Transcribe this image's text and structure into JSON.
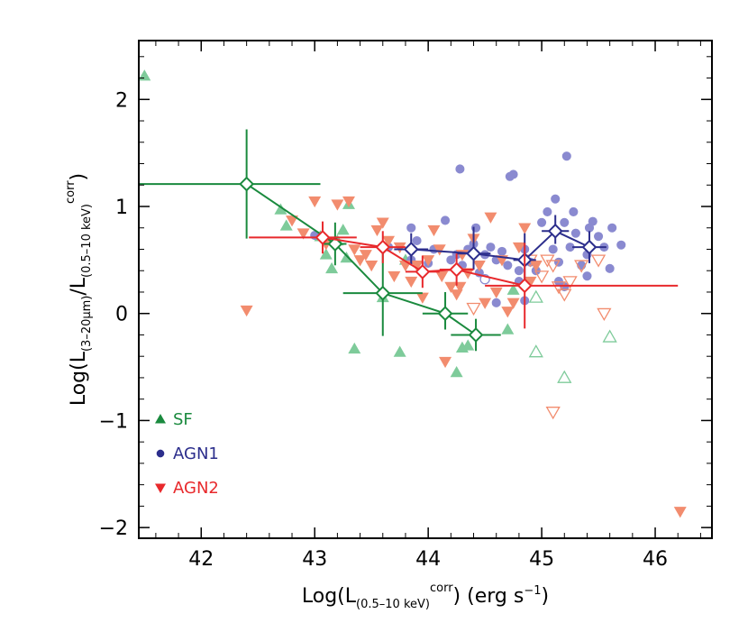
{
  "chart_data": {
    "type": "scatter",
    "xlabel": {
      "prefix": "Log(L",
      "sub": "(0.5–10 keV)",
      "sup": "corr",
      "suffix": ") (erg s",
      "unit_sup": "−1",
      "end": ")"
    },
    "ylabel": {
      "prefix": "Log(L",
      "sub1": "(3–20μm)",
      "mid": "/L",
      "sub2": "(0.5–10 keV)",
      "sup": "corr",
      "end": ")"
    },
    "xlim": [
      41.45,
      46.5
    ],
    "ylim": [
      -2.1,
      2.55
    ],
    "x_ticks": [
      42,
      43,
      44,
      45,
      46
    ],
    "x_tick_labels": [
      "42",
      "43",
      "44",
      "45",
      "46"
    ],
    "y_ticks": [
      2,
      1,
      0,
      -1,
      -2
    ],
    "y_tick_labels": [
      "2",
      "1",
      "0",
      "−1",
      "−2"
    ],
    "legend": [
      {
        "label": "SF",
        "color": "#1a8a3e",
        "marker": "triangle-up"
      },
      {
        "label": "AGN1",
        "color": "#2c2e8c",
        "marker": "circle"
      },
      {
        "label": "AGN2",
        "color": "#e8292c",
        "marker": "triangle-down"
      }
    ],
    "colors": {
      "sf_point": "#7ecb9a",
      "agn1_point": "#8a8ad0",
      "agn2_point": "#f28c6e",
      "sf_line": "#1a8a3e",
      "agn1_line": "#2c2e8c",
      "agn2_line": "#e8292c"
    },
    "series": [
      {
        "name": "SF",
        "kind": "points",
        "marker": "triangle-up",
        "filled": [
          [
            41.5,
            2.22
          ],
          [
            42.7,
            0.97
          ],
          [
            42.75,
            0.82
          ],
          [
            43.05,
            0.72
          ],
          [
            43.1,
            0.55
          ],
          [
            43.15,
            0.42
          ],
          [
            43.2,
            0.68
          ],
          [
            43.25,
            0.78
          ],
          [
            43.28,
            0.52
          ],
          [
            43.3,
            1.02
          ],
          [
            43.35,
            -0.33
          ],
          [
            43.6,
            0.15
          ],
          [
            43.75,
            -0.36
          ],
          [
            43.8,
            0.5
          ],
          [
            44.25,
            -0.55
          ],
          [
            44.3,
            -0.32
          ],
          [
            44.35,
            -0.3
          ],
          [
            44.7,
            -0.15
          ],
          [
            44.75,
            0.22
          ]
        ],
        "open": [
          [
            44.95,
            -0.36
          ],
          [
            44.95,
            0.15
          ],
          [
            45.2,
            -0.6
          ],
          [
            45.6,
            -0.22
          ]
        ]
      },
      {
        "name": "AGN1",
        "kind": "points",
        "marker": "circle",
        "filled": [
          [
            43.0,
            0.73
          ],
          [
            43.65,
            0.62
          ],
          [
            43.85,
            0.8
          ],
          [
            43.85,
            0.5
          ],
          [
            43.9,
            0.68
          ],
          [
            44.0,
            0.47
          ],
          [
            44.05,
            0.6
          ],
          [
            44.15,
            0.87
          ],
          [
            44.2,
            0.5
          ],
          [
            44.25,
            0.55
          ],
          [
            44.28,
            1.35
          ],
          [
            44.3,
            0.45
          ],
          [
            44.35,
            0.6
          ],
          [
            44.4,
            0.65
          ],
          [
            44.42,
            0.8
          ],
          [
            44.45,
            0.38
          ],
          [
            44.5,
            0.55
          ],
          [
            44.55,
            0.62
          ],
          [
            44.6,
            0.5
          ],
          [
            44.65,
            0.58
          ],
          [
            44.7,
            0.45
          ],
          [
            44.72,
            1.28
          ],
          [
            44.75,
            1.3
          ],
          [
            44.8,
            0.4
          ],
          [
            44.85,
            0.6
          ],
          [
            44.9,
            0.48
          ],
          [
            45.0,
            0.85
          ],
          [
            45.05,
            0.95
          ],
          [
            45.1,
            0.6
          ],
          [
            45.12,
            1.07
          ],
          [
            45.15,
            0.48
          ],
          [
            45.2,
            0.85
          ],
          [
            45.22,
            1.47
          ],
          [
            45.25,
            0.62
          ],
          [
            45.28,
            0.95
          ],
          [
            45.3,
            0.75
          ],
          [
            45.35,
            0.45
          ],
          [
            45.4,
            0.35
          ],
          [
            45.42,
            0.8
          ],
          [
            45.45,
            0.86
          ],
          [
            45.5,
            0.72
          ],
          [
            45.55,
            0.62
          ],
          [
            45.6,
            0.42
          ],
          [
            45.62,
            0.8
          ],
          [
            45.7,
            0.64
          ],
          [
            44.6,
            0.1
          ],
          [
            44.85,
            0.12
          ],
          [
            44.8,
            0.3
          ],
          [
            44.95,
            0.4
          ],
          [
            45.15,
            0.3
          ],
          [
            45.2,
            0.25
          ],
          [
            45.4,
            0.55
          ]
        ],
        "open": [
          [
            44.5,
            0.32
          ]
        ]
      },
      {
        "name": "AGN2",
        "kind": "points",
        "marker": "triangle-down",
        "filled": [
          [
            42.4,
            0.03
          ],
          [
            42.8,
            0.87
          ],
          [
            42.9,
            0.75
          ],
          [
            43.0,
            1.05
          ],
          [
            43.1,
            0.65
          ],
          [
            43.2,
            1.02
          ],
          [
            43.3,
            1.05
          ],
          [
            43.35,
            0.6
          ],
          [
            43.4,
            0.5
          ],
          [
            43.45,
            0.55
          ],
          [
            43.5,
            0.45
          ],
          [
            43.55,
            0.78
          ],
          [
            43.6,
            0.85
          ],
          [
            43.65,
            0.68
          ],
          [
            43.7,
            0.35
          ],
          [
            43.75,
            0.62
          ],
          [
            43.8,
            0.45
          ],
          [
            43.85,
            0.3
          ],
          [
            43.9,
            0.45
          ],
          [
            43.95,
            0.15
          ],
          [
            44.0,
            0.5
          ],
          [
            44.05,
            0.78
          ],
          [
            44.1,
            0.6
          ],
          [
            44.12,
            0.35
          ],
          [
            44.15,
            -0.45
          ],
          [
            44.2,
            0.25
          ],
          [
            44.25,
            0.18
          ],
          [
            44.28,
            0.25
          ],
          [
            44.3,
            0.55
          ],
          [
            44.35,
            0.38
          ],
          [
            44.4,
            0.7
          ],
          [
            44.45,
            0.45
          ],
          [
            44.5,
            0.1
          ],
          [
            44.55,
            0.9
          ],
          [
            44.6,
            0.2
          ],
          [
            44.65,
            0.5
          ],
          [
            44.7,
            0.02
          ],
          [
            44.75,
            0.1
          ],
          [
            44.8,
            0.62
          ],
          [
            44.85,
            0.8
          ],
          [
            44.9,
            0.3
          ],
          [
            44.95,
            0.45
          ],
          [
            46.22,
            -1.85
          ]
        ],
        "open": [
          [
            44.4,
            0.05
          ],
          [
            44.9,
            0.5
          ],
          [
            45.0,
            0.35
          ],
          [
            45.05,
            0.5
          ],
          [
            45.1,
            0.45
          ],
          [
            45.15,
            0.25
          ],
          [
            45.2,
            0.18
          ],
          [
            45.25,
            0.3
          ],
          [
            45.35,
            0.45
          ],
          [
            45.5,
            0.5
          ],
          [
            45.1,
            -0.92
          ],
          [
            45.55,
            0.0
          ]
        ]
      },
      {
        "name": "SF",
        "kind": "binned",
        "points": [
          {
            "x": 42.4,
            "y": 1.21,
            "xerr": [
              0.95,
              0.65
            ],
            "yerr": [
              0.51,
              0.51
            ]
          },
          {
            "x": 43.18,
            "y": 0.65,
            "xerr": [
              0.1,
              0.1
            ],
            "yerr": [
              0.2,
              0.2
            ]
          },
          {
            "x": 43.6,
            "y": 0.19,
            "xerr": [
              0.35,
              0.35
            ],
            "yerr": [
              0.4,
              0.45
            ]
          },
          {
            "x": 44.15,
            "y": 0.0,
            "xerr": [
              0.2,
              0.2
            ],
            "yerr": [
              0.15,
              0.2
            ]
          },
          {
            "x": 44.42,
            "y": -0.2,
            "xerr": [
              0.22,
              0.22
            ],
            "yerr": [
              0.15,
              0.15
            ]
          }
        ]
      },
      {
        "name": "AGN1",
        "kind": "binned",
        "points": [
          {
            "x": 43.85,
            "y": 0.6,
            "xerr": [
              0.15,
              0.15
            ],
            "yerr": [
              0.15,
              0.15
            ]
          },
          {
            "x": 44.4,
            "y": 0.56,
            "xerr": [
              0.15,
              0.15
            ],
            "yerr": [
              0.15,
              0.25
            ]
          },
          {
            "x": 44.85,
            "y": 0.5,
            "xerr": [
              0.1,
              0.1
            ],
            "yerr": [
              0.2,
              0.25
            ]
          },
          {
            "x": 45.12,
            "y": 0.77,
            "xerr": [
              0.12,
              0.12
            ],
            "yerr": [
              0.12,
              0.15
            ]
          },
          {
            "x": 45.42,
            "y": 0.62,
            "xerr": [
              0.15,
              0.15
            ],
            "yerr": [
              0.15,
              0.15
            ]
          }
        ]
      },
      {
        "name": "AGN2",
        "kind": "binned",
        "points": [
          {
            "x": 43.07,
            "y": 0.71,
            "xerr": [
              0.65,
              0.3
            ],
            "yerr": [
              0.15,
              0.15
            ]
          },
          {
            "x": 43.6,
            "y": 0.62,
            "xerr": [
              0.2,
              0.2
            ],
            "yerr": [
              0.15,
              0.15
            ]
          },
          {
            "x": 43.95,
            "y": 0.39,
            "xerr": [
              0.15,
              0.15
            ],
            "yerr": [
              0.15,
              0.15
            ]
          },
          {
            "x": 44.25,
            "y": 0.41,
            "xerr": [
              0.15,
              0.15
            ],
            "yerr": [
              0.15,
              0.15
            ]
          },
          {
            "x": 44.85,
            "y": 0.26,
            "xerr": [
              0.35,
              1.35
            ],
            "yerr": [
              0.4,
              0.4
            ]
          }
        ]
      }
    ]
  }
}
